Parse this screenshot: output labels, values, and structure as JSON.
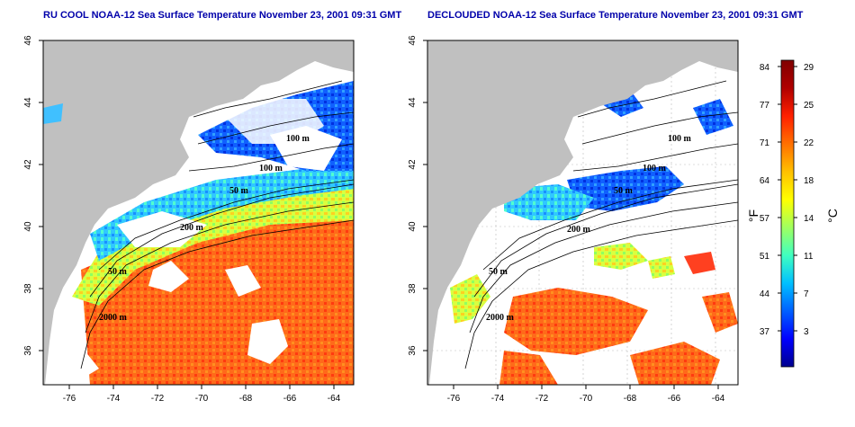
{
  "panels": [
    {
      "title": "RU COOL NOAA-12 Sea Surface Temperature November 23, 2001 09:31 GMT",
      "x_ticks": [
        "-76",
        "-74",
        "-72",
        "-70",
        "-68",
        "-66",
        "-64"
      ],
      "y_ticks": [
        "36",
        "38",
        "40",
        "42",
        "44",
        "46"
      ],
      "contour_labels": [
        "100 m",
        "100 m",
        "50 m",
        "200 m",
        "50 m",
        "2000 m"
      ]
    },
    {
      "title": "DECLOUDED NOAA-12 Sea Surface Temperature November 23, 2001 09:31 GMT",
      "x_ticks": [
        "-76",
        "-74",
        "-72",
        "-70",
        "-68",
        "-66",
        "-64"
      ],
      "y_ticks": [
        "36",
        "38",
        "40",
        "42",
        "44",
        "46"
      ],
      "contour_labels": [
        "100 m",
        "100 m",
        "50 m",
        "200 m",
        "50 m",
        "2000 m"
      ]
    }
  ],
  "colorbar": {
    "fahrenheit_ticks": [
      "84",
      "77",
      "71",
      "64",
      "57",
      "51",
      "44",
      "37"
    ],
    "celsius_ticks": [
      "29",
      "25",
      "22",
      "18",
      "14",
      "11",
      "7",
      "3"
    ],
    "fahrenheit_unit": "°F",
    "celsius_unit": "°C",
    "colors": [
      "#00008f",
      "#0000ff",
      "#0060ff",
      "#00c0ff",
      "#40ffc0",
      "#a0ff60",
      "#ffff00",
      "#ffc000",
      "#ff7000",
      "#ff2000",
      "#b00000",
      "#800000"
    ]
  },
  "colors": {
    "land": "#c0c0c0",
    "title": "#0000aa",
    "warm_water": "#ff6020",
    "cool_water": "#40d0ff"
  }
}
